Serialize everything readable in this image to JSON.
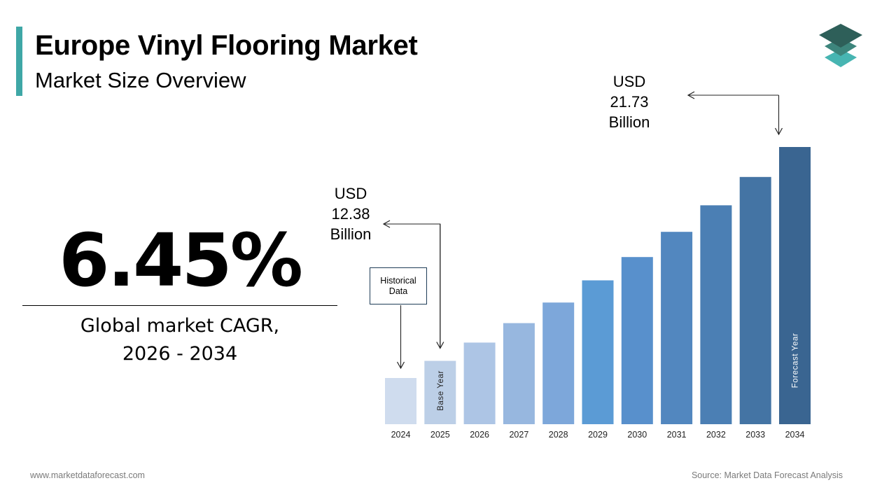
{
  "header": {
    "title": "Europe Vinyl Flooring Market",
    "subtitle": "Market Size Overview",
    "accent_color": "#3fa7a6"
  },
  "logo": {
    "icon": "stacked-layers-icon",
    "colors": [
      "#2e5f59",
      "#3d857c",
      "#47b5b2"
    ]
  },
  "cagr": {
    "value": "6.45%",
    "label_line1": "Global market CAGR,",
    "label_line2": "2026 - 2034"
  },
  "callouts": {
    "start": {
      "line1": "USD",
      "line2": "12.38",
      "line3": "Billion"
    },
    "end": {
      "line1": "USD",
      "line2": "21.73",
      "line3": "Billion"
    },
    "historical": {
      "line1": "Historical",
      "line2": "Data"
    }
  },
  "chart_data": {
    "type": "bar",
    "categories": [
      "2024",
      "2025",
      "2026",
      "2027",
      "2028",
      "2029",
      "2030",
      "2031",
      "2032",
      "2033",
      "2034"
    ],
    "values": [
      11.63,
      12.38,
      13.18,
      14.03,
      14.93,
      15.9,
      16.92,
      18.02,
      19.18,
      20.42,
      21.73
    ],
    "bar_colors": [
      "#cfdcee",
      "#bccfe7",
      "#adc5e5",
      "#97b7df",
      "#7da7da",
      "#5b9bd5",
      "#5890cc",
      "#5287bf",
      "#4b7fb4",
      "#4474a4",
      "#3a6591"
    ],
    "bar_annotations": {
      "2025": "Base Year",
      "2034": "Forecast Year"
    },
    "ylim": [
      0,
      24
    ]
  },
  "footer": {
    "website": "www.marketdataforecast.com",
    "source": "Source: Market Data Forecast Analysis"
  }
}
